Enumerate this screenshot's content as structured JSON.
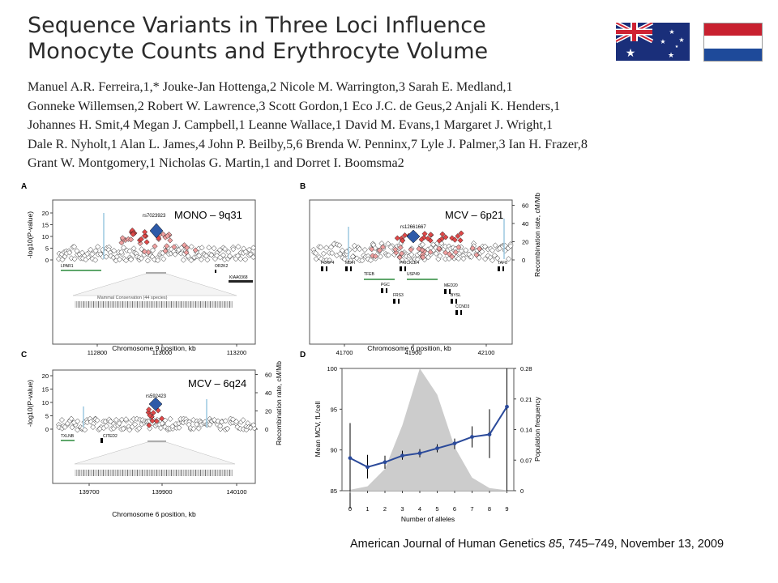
{
  "title": {
    "line1": "Sequence Variants in Three Loci Influence",
    "line2": "Monocyte Counts and Erythrocyte Volume"
  },
  "authors": {
    "lines": [
      "Manuel A.R. Ferreira,1,* Jouke-Jan Hottenga,2 Nicole M. Warrington,3 Sarah E. Medland,1",
      "Gonneke Willemsen,2 Robert W. Lawrence,3 Scott Gordon,1 Eco J.C. de Geus,2 Anjali K. Henders,1",
      "Johannes H. Smit,4 Megan J. Campbell,1 Leanne Wallace,1 David M. Evans,1 Margaret J. Wright,1",
      "Dale R. Nyholt,1 Alan L. James,4 John P. Beilby,5,6 Brenda W. Penninx,7 Lyle J. Palmer,3 Ian H. Frazer,8",
      "Grant W. Montgomery,1 Nicholas G. Martin,1 and Dorret I. Boomsma2"
    ]
  },
  "flags": {
    "left_icon": "australia-flag-icon",
    "right_icon": "netherlands-flag-icon"
  },
  "colors": {
    "lead_snp": "#2e5aa8",
    "high_ld": "#e04848",
    "mid_ld": "#f0a0a0",
    "recomb": "#9cc8e0",
    "gene": "#2a8a3a",
    "shade": "#cccccc",
    "line": "#2b4a9a"
  },
  "panels": {
    "A": {
      "letter": "A",
      "label": "MONO – 9q31",
      "snp": "rs7023923",
      "xlabel": "Chromosome 9 position, kb",
      "ylabel": "-log10(P-value)",
      "xticks": [
        "112800",
        "113000",
        "113200"
      ],
      "yticks": [
        "0",
        "5",
        "10",
        "15",
        "20"
      ],
      "genes": [
        "LPAR1",
        "OR2K2",
        "KIAA0368"
      ],
      "conservation": "Mammal Conservation (44 species)"
    },
    "B": {
      "letter": "B",
      "label": "MCV – 6p21",
      "snp": "rs12661667",
      "xlabel": "Chromosome 6 position, kb",
      "ylabel2": "Recombination rate, cM/Mb",
      "xticks": [
        "41700",
        "41900",
        "42100"
      ],
      "yticks": [
        "0",
        "20",
        "40",
        "60"
      ],
      "genes": [
        "FOXP4",
        "MDFI",
        "TFEB",
        "PGC",
        "FRS3",
        "PRICKLE4",
        "USP49",
        "MED20",
        "BYSL",
        "CCND3",
        "TAF8"
      ]
    },
    "C": {
      "letter": "C",
      "label": "MCV – 6q24",
      "snp": "rs592423",
      "xlabel": "Chromosome 6 position, kb",
      "ylabel": "-log10(P-value)",
      "ylabel2": "Recombination rate, cM/Mb",
      "xticks": [
        "139700",
        "139900",
        "140100"
      ],
      "yticks": [
        "0",
        "5",
        "10",
        "15",
        "20"
      ],
      "yticks2": [
        "0",
        "20",
        "40",
        "60"
      ],
      "genes": [
        "TXLNB",
        "CITED2"
      ]
    },
    "D": {
      "letter": "D",
      "xlabel": "Number of alleles",
      "ylabel": "Mean MCV, fL/cell",
      "ylabel2": "Population frequency",
      "yticks": [
        "85",
        "90",
        "95",
        "100"
      ],
      "yticks2": [
        "0",
        "0.07",
        "0.14",
        "0.21",
        "0.28"
      ]
    }
  },
  "chart_data": {
    "type": "line",
    "title": "",
    "xlabel": "Number of alleles",
    "ylabel": "Mean MCV, fL/cell",
    "ylabel2": "Population frequency",
    "x": [
      0,
      1,
      2,
      3,
      4,
      5,
      6,
      7,
      8,
      9
    ],
    "ylim": [
      85,
      100
    ],
    "ylim2": [
      0,
      0.28
    ],
    "series": [
      {
        "values": [
          89.0,
          87.9,
          88.5,
          89.3,
          89.6,
          90.2,
          90.8,
          91.6,
          91.9,
          95.3
        ]
      },
      {
        "values": [
          0.002,
          0.01,
          0.05,
          0.15,
          0.28,
          0.22,
          0.1,
          0.03,
          0.006,
          0.001
        ]
      }
    ],
    "error_lower": [
      82.8,
      86.5,
      87.7,
      88.8,
      89.1,
      89.7,
      90.1,
      90.3,
      89.0,
      85.0
    ],
    "error_upper": [
      93.3,
      89.4,
      89.3,
      89.9,
      90.1,
      90.7,
      91.4,
      92.9,
      95.0,
      100.0
    ]
  }
}
